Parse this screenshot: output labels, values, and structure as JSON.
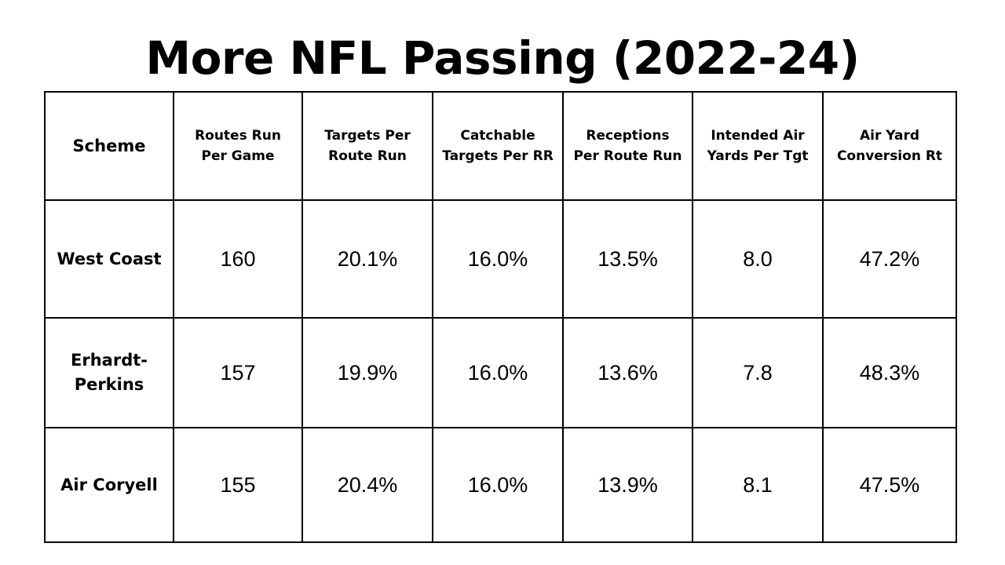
{
  "title": "More NFL Passing (2022-24)",
  "chart_data": {
    "type": "table",
    "title": "More NFL Passing (2022-24)",
    "columns": [
      "Scheme",
      "Routes Run Per Game",
      "Targets Per Route Run",
      "Catchable Targets Per RR",
      "Receptions Per Route Run",
      "Intended Air Yards Per Tgt",
      "Air Yard Conversion Rt"
    ],
    "rows": [
      [
        "West Coast",
        "160",
        "20.1%",
        "16.0%",
        "13.5%",
        "8.0",
        "47.2%"
      ],
      [
        "Erhardt-Perkins",
        "157",
        "19.9%",
        "16.0%",
        "13.6%",
        "7.8",
        "48.3%"
      ],
      [
        "Air Coryell",
        "155",
        "20.4%",
        "16.0%",
        "13.9%",
        "8.1",
        "47.5%"
      ]
    ]
  }
}
